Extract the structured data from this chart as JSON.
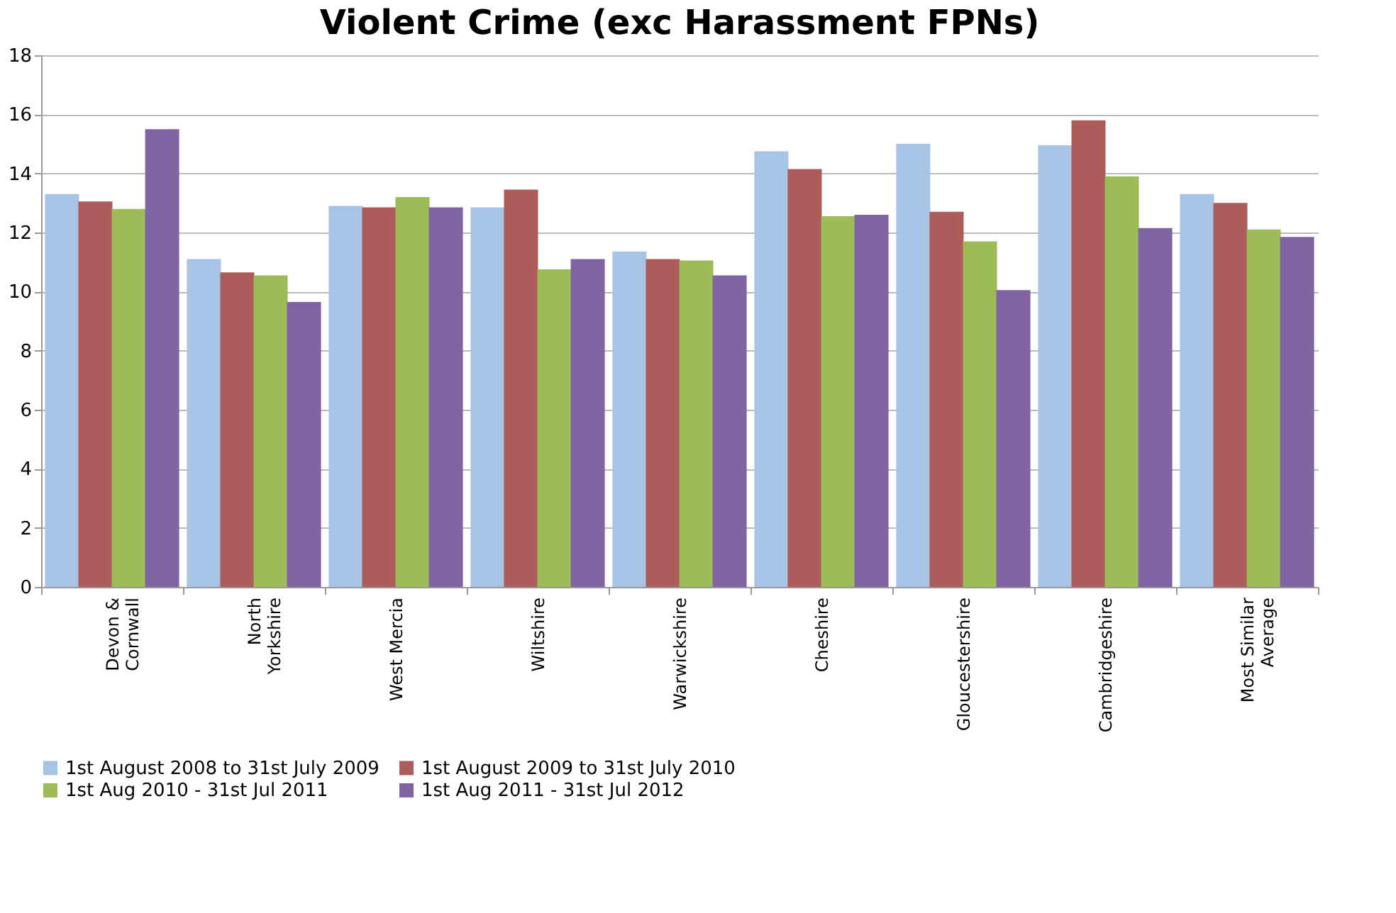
{
  "chart_data": {
    "type": "bar",
    "title": "Violent Crime (exc Harassment FPNs)",
    "categories": [
      "Devon &\nCornwall",
      "North\nYorkshire",
      "West Mercia",
      "Wiltshire",
      "Warwickshire",
      "Cheshire",
      "Gloucestershire",
      "Cambridgeshire",
      "Most Similar\nAverage"
    ],
    "series": [
      {
        "name": "1st August 2008 to 31st July 2009",
        "color": "#a7c3e6",
        "values": [
          13.3,
          11.1,
          12.9,
          12.85,
          11.35,
          14.75,
          15.0,
          14.95,
          13.3
        ]
      },
      {
        "name": "1st August 2009 to 31st July 2010",
        "color": "#ad5c5c",
        "values": [
          13.05,
          10.65,
          12.85,
          13.45,
          11.1,
          14.15,
          12.7,
          15.8,
          13.0
        ]
      },
      {
        "name": "1st Aug 2010 - 31st Jul 2011",
        "color": "#9dbb56",
        "values": [
          12.8,
          10.55,
          13.2,
          10.75,
          11.05,
          12.55,
          11.7,
          13.9,
          12.1
        ]
      },
      {
        "name": "1st Aug 2011 - 31st Jul 2012",
        "color": "#8064a2",
        "values": [
          15.5,
          9.65,
          12.85,
          11.1,
          10.55,
          12.6,
          10.05,
          12.15,
          11.85
        ]
      }
    ],
    "ylim": [
      0,
      18
    ],
    "yticks": [
      0,
      2,
      4,
      6,
      8,
      10,
      12,
      14,
      16,
      18
    ],
    "grid": "y",
    "legend": "bottom"
  }
}
